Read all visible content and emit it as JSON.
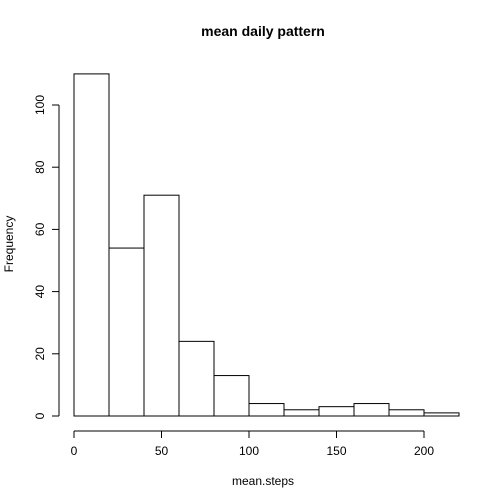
{
  "chart_data": {
    "type": "bar",
    "title": "mean daily pattern",
    "xlabel": "mean.steps",
    "ylabel": "Frequency",
    "bins": [
      {
        "from": 0,
        "to": 20,
        "count": 110
      },
      {
        "from": 20,
        "to": 40,
        "count": 54
      },
      {
        "from": 40,
        "to": 60,
        "count": 71
      },
      {
        "from": 60,
        "to": 80,
        "count": 24
      },
      {
        "from": 80,
        "to": 100,
        "count": 13
      },
      {
        "from": 100,
        "to": 120,
        "count": 4
      },
      {
        "from": 120,
        "to": 140,
        "count": 2
      },
      {
        "from": 140,
        "to": 160,
        "count": 3
      },
      {
        "from": 160,
        "to": 180,
        "count": 4
      },
      {
        "from": 180,
        "to": 200,
        "count": 2
      },
      {
        "from": 200,
        "to": 220,
        "count": 1
      }
    ],
    "xlim": [
      0,
      220
    ],
    "ylim": [
      0,
      110
    ],
    "x_ticks": [
      0,
      50,
      100,
      150,
      200
    ],
    "y_ticks": [
      0,
      20,
      40,
      60,
      80,
      100
    ],
    "grid": false,
    "bar_fill": "#ffffff",
    "bar_stroke": "#000000"
  }
}
